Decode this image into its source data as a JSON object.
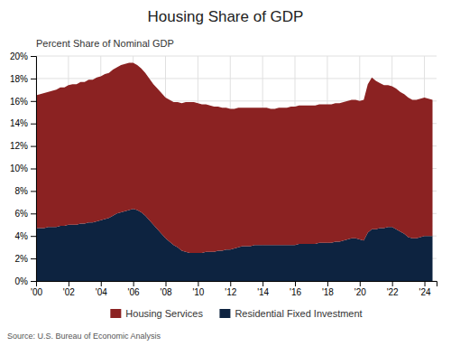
{
  "chart_data": {
    "type": "area",
    "stacked": true,
    "title": "Housing Share of GDP",
    "subtitle": "Percent Share of Nominal GDP",
    "annotations": [
      "Source: U.S. Bureau of Economic Analysis"
    ],
    "grid": true,
    "legend": "bottom",
    "x": [
      2000.0,
      2000.25,
      2000.5,
      2000.75,
      2001.0,
      2001.25,
      2001.5,
      2001.75,
      2002.0,
      2002.25,
      2002.5,
      2002.75,
      2003.0,
      2003.25,
      2003.5,
      2003.75,
      2004.0,
      2004.25,
      2004.5,
      2004.75,
      2005.0,
      2005.25,
      2005.5,
      2005.75,
      2006.0,
      2006.25,
      2006.5,
      2006.75,
      2007.0,
      2007.25,
      2007.5,
      2007.75,
      2008.0,
      2008.25,
      2008.5,
      2008.75,
      2009.0,
      2009.25,
      2009.5,
      2009.75,
      2010.0,
      2010.25,
      2010.5,
      2010.75,
      2011.0,
      2011.25,
      2011.5,
      2011.75,
      2012.0,
      2012.25,
      2012.5,
      2012.75,
      2013.0,
      2013.25,
      2013.5,
      2013.75,
      2014.0,
      2014.25,
      2014.5,
      2014.75,
      2015.0,
      2015.25,
      2015.5,
      2015.75,
      2016.0,
      2016.25,
      2016.5,
      2016.75,
      2017.0,
      2017.25,
      2017.5,
      2017.75,
      2018.0,
      2018.25,
      2018.5,
      2018.75,
      2019.0,
      2019.25,
      2019.5,
      2019.75,
      2020.0,
      2020.25,
      2020.5,
      2020.75,
      2021.0,
      2021.25,
      2021.5,
      2021.75,
      2022.0,
      2022.25,
      2022.5,
      2022.75,
      2023.0,
      2023.25,
      2023.5,
      2023.75,
      2024.0,
      2024.25,
      2024.5
    ],
    "xlim": [
      2000,
      2024.75
    ],
    "xticks": [
      {
        "value": 2000,
        "label": "'00"
      },
      {
        "value": 2002,
        "label": "'02"
      },
      {
        "value": 2004,
        "label": "'04"
      },
      {
        "value": 2006,
        "label": "'06"
      },
      {
        "value": 2008,
        "label": "'08"
      },
      {
        "value": 2010,
        "label": "'10"
      },
      {
        "value": 2012,
        "label": "'12"
      },
      {
        "value": 2014,
        "label": "'14"
      },
      {
        "value": 2016,
        "label": "'16"
      },
      {
        "value": 2018,
        "label": "'18"
      },
      {
        "value": 2020,
        "label": "'20"
      },
      {
        "value": 2022,
        "label": "'22"
      },
      {
        "value": 2024,
        "label": "'24"
      }
    ],
    "ylim": [
      0,
      20
    ],
    "yticks": [
      {
        "value": 0,
        "label": "0%"
      },
      {
        "value": 2,
        "label": "2%"
      },
      {
        "value": 4,
        "label": "4%"
      },
      {
        "value": 6,
        "label": "6%"
      },
      {
        "value": 8,
        "label": "8%"
      },
      {
        "value": 10,
        "label": "10%"
      },
      {
        "value": 12,
        "label": "12%"
      },
      {
        "value": 14,
        "label": "14%"
      },
      {
        "value": 16,
        "label": "16%"
      },
      {
        "value": 18,
        "label": "18%"
      },
      {
        "value": 20,
        "label": "20%"
      }
    ],
    "series": [
      {
        "name": "Residential Fixed Investment",
        "color": "#0D2340",
        "values": [
          4.7,
          4.7,
          4.7,
          4.8,
          4.8,
          4.8,
          4.9,
          4.9,
          5.0,
          5.0,
          5.0,
          5.1,
          5.1,
          5.2,
          5.2,
          5.3,
          5.4,
          5.5,
          5.6,
          5.8,
          6.0,
          6.1,
          6.2,
          6.3,
          6.4,
          6.3,
          6.1,
          5.8,
          5.4,
          5.0,
          4.6,
          4.2,
          3.8,
          3.5,
          3.2,
          3.0,
          2.7,
          2.6,
          2.5,
          2.5,
          2.5,
          2.5,
          2.6,
          2.6,
          2.6,
          2.7,
          2.7,
          2.8,
          2.8,
          2.9,
          3.0,
          3.1,
          3.1,
          3.1,
          3.2,
          3.2,
          3.2,
          3.2,
          3.2,
          3.2,
          3.2,
          3.2,
          3.2,
          3.2,
          3.2,
          3.3,
          3.3,
          3.3,
          3.3,
          3.3,
          3.4,
          3.4,
          3.4,
          3.4,
          3.5,
          3.5,
          3.6,
          3.7,
          3.8,
          3.8,
          3.7,
          3.6,
          4.3,
          4.6,
          4.6,
          4.7,
          4.7,
          4.8,
          4.8,
          4.6,
          4.4,
          4.2,
          3.9,
          3.8,
          3.8,
          3.9,
          4.0,
          4.0,
          4.0
        ]
      },
      {
        "name": "Housing Services",
        "color": "#8B2222",
        "values": [
          11.8,
          11.9,
          12.0,
          12.0,
          12.1,
          12.2,
          12.3,
          12.3,
          12.4,
          12.5,
          12.5,
          12.6,
          12.6,
          12.7,
          12.7,
          12.8,
          12.8,
          12.9,
          12.9,
          13.0,
          13.0,
          13.1,
          13.1,
          13.1,
          13.0,
          12.9,
          12.8,
          12.7,
          12.6,
          12.5,
          12.5,
          12.5,
          12.5,
          12.6,
          12.7,
          12.9,
          13.1,
          13.3,
          13.4,
          13.4,
          13.3,
          13.2,
          13.1,
          13.0,
          12.9,
          12.8,
          12.7,
          12.6,
          12.5,
          12.4,
          12.4,
          12.3,
          12.3,
          12.3,
          12.2,
          12.2,
          12.2,
          12.2,
          12.1,
          12.1,
          12.2,
          12.2,
          12.2,
          12.3,
          12.3,
          12.3,
          12.3,
          12.3,
          12.3,
          12.3,
          12.3,
          12.3,
          12.3,
          12.3,
          12.3,
          12.3,
          12.3,
          12.3,
          12.3,
          12.3,
          12.3,
          12.5,
          13.2,
          13.5,
          13.2,
          12.9,
          12.7,
          12.6,
          12.5,
          12.5,
          12.4,
          12.4,
          12.4,
          12.3,
          12.3,
          12.3,
          12.3,
          12.2,
          12.1
        ]
      }
    ]
  }
}
